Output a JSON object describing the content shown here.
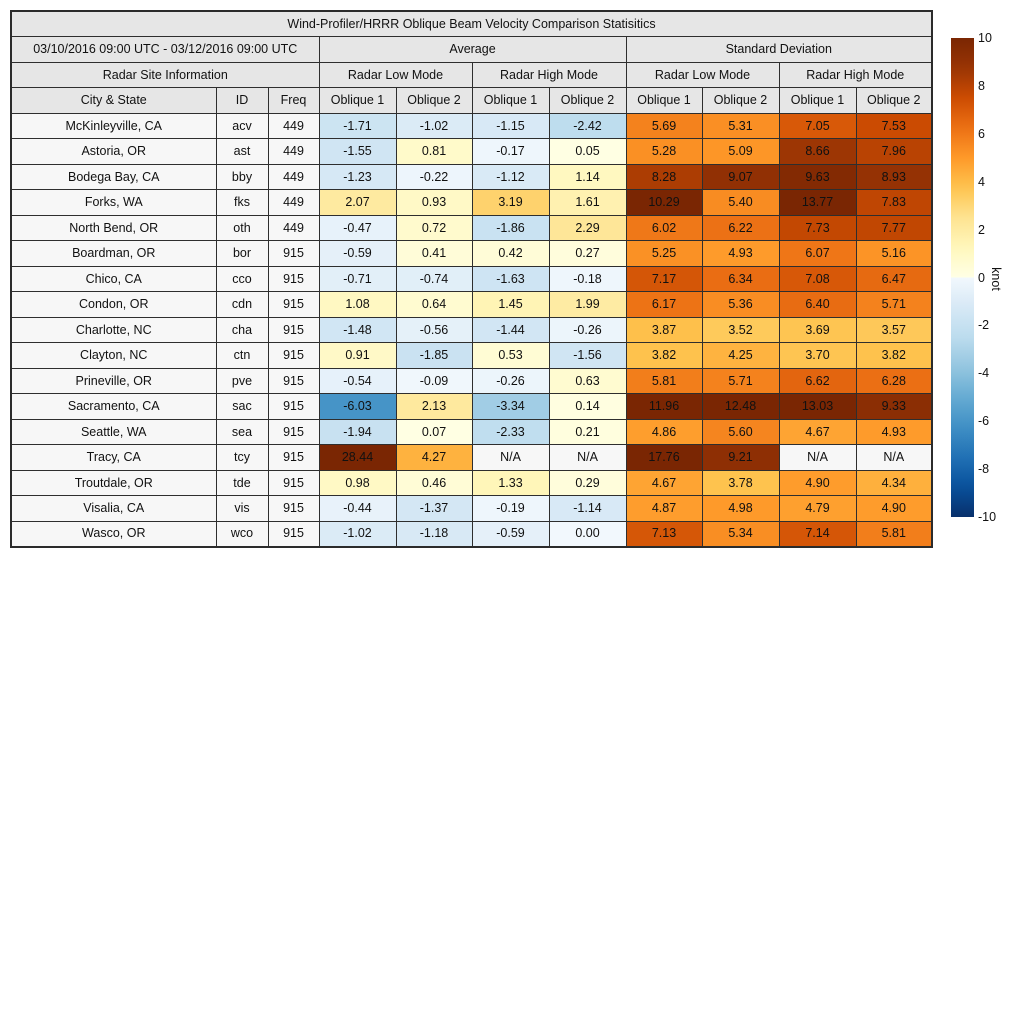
{
  "title": "Wind-Profiler/HRRR Oblique Beam Velocity Comparison Statisitics",
  "na_label": "N/A",
  "header": {
    "date_range": "03/10/2016 09:00 UTC - 03/12/2016 09:00 UTC",
    "group_average": "Average",
    "group_std": "Standard Deviation",
    "site_info": "Radar Site Information",
    "mode_labels": [
      "Radar Low Mode",
      "Radar High Mode",
      "Radar Low Mode",
      "Radar High Mode"
    ],
    "col_city": "City & State",
    "col_id": "ID",
    "col_freq": "Freq",
    "oblique_labels": [
      "Oblique 1",
      "Oblique 2",
      "Oblique 1",
      "Oblique 2",
      "Oblique 1",
      "Oblique 2",
      "Oblique 1",
      "Oblique 2"
    ]
  },
  "colors": {
    "header_bg": "#e6e6e6",
    "label_bg": "#f7f7f7",
    "na_bg": "#f7f7f7",
    "border": "#2e2e2e",
    "text": "#111111"
  },
  "colorbar": {
    "label": "knot",
    "vmin": -10,
    "vmax": 10,
    "ticks": [
      10,
      8,
      6,
      4,
      2,
      0,
      -2,
      -4,
      -6,
      -8,
      -10
    ],
    "positive_stops": [
      "#ffffe5",
      "#fff7bc",
      "#fee391",
      "#fec44f",
      "#fe9929",
      "#ec7014",
      "#cc4c02",
      "#993404",
      "#7a2603"
    ],
    "negative_stops": [
      "#f2f8fd",
      "#d6e8f5",
      "#bcdcee",
      "#94c6e0",
      "#66abd3",
      "#3f8fc5",
      "#2171b5",
      "#08519c",
      "#08306b"
    ]
  },
  "chart_data": {
    "type": "table",
    "title": "Wind-Profiler/HRRR Oblique Beam Velocity Comparison Statisitics",
    "value_unit": "knot",
    "value_columns": [
      "Average Radar Low Mode Oblique 1",
      "Average Radar Low Mode Oblique 2",
      "Average Radar High Mode Oblique 1",
      "Average Radar High Mode Oblique 2",
      "Standard Deviation Radar Low Mode Oblique 1",
      "Standard Deviation Radar Low Mode Oblique 2",
      "Standard Deviation Radar High Mode Oblique 1",
      "Standard Deviation Radar High Mode Oblique 2"
    ],
    "rows": [
      {
        "city": "McKinleyville, CA",
        "id": "acv",
        "freq": "449",
        "values": [
          -1.71,
          -1.02,
          -1.15,
          -2.42,
          5.69,
          5.31,
          7.05,
          7.53
        ]
      },
      {
        "city": "Astoria, OR",
        "id": "ast",
        "freq": "449",
        "values": [
          -1.55,
          0.81,
          -0.17,
          0.05,
          5.28,
          5.09,
          8.66,
          7.96
        ]
      },
      {
        "city": "Bodega Bay, CA",
        "id": "bby",
        "freq": "449",
        "values": [
          -1.23,
          -0.22,
          -1.12,
          1.14,
          8.28,
          9.07,
          9.63,
          8.93
        ]
      },
      {
        "city": "Forks, WA",
        "id": "fks",
        "freq": "449",
        "values": [
          2.07,
          0.93,
          3.19,
          1.61,
          10.29,
          5.4,
          13.77,
          7.83
        ]
      },
      {
        "city": "North Bend, OR",
        "id": "oth",
        "freq": "449",
        "values": [
          -0.47,
          0.72,
          -1.86,
          2.29,
          6.02,
          6.22,
          7.73,
          7.77
        ]
      },
      {
        "city": "Boardman, OR",
        "id": "bor",
        "freq": "915",
        "values": [
          -0.59,
          0.41,
          0.42,
          0.27,
          5.25,
          4.93,
          6.07,
          5.16
        ]
      },
      {
        "city": "Chico, CA",
        "id": "cco",
        "freq": "915",
        "values": [
          -0.71,
          -0.74,
          -1.63,
          -0.18,
          7.17,
          6.34,
          7.08,
          6.47
        ]
      },
      {
        "city": "Condon, OR",
        "id": "cdn",
        "freq": "915",
        "values": [
          1.08,
          0.64,
          1.45,
          1.99,
          6.17,
          5.36,
          6.4,
          5.71
        ]
      },
      {
        "city": "Charlotte, NC",
        "id": "cha",
        "freq": "915",
        "values": [
          -1.48,
          -0.56,
          -1.44,
          -0.26,
          3.87,
          3.52,
          3.69,
          3.57
        ]
      },
      {
        "city": "Clayton, NC",
        "id": "ctn",
        "freq": "915",
        "values": [
          0.91,
          -1.85,
          0.53,
          -1.56,
          3.82,
          4.25,
          3.7,
          3.82
        ]
      },
      {
        "city": "Prineville, OR",
        "id": "pve",
        "freq": "915",
        "values": [
          -0.54,
          -0.09,
          -0.26,
          0.63,
          5.81,
          5.71,
          6.62,
          6.28
        ]
      },
      {
        "city": "Sacramento, CA",
        "id": "sac",
        "freq": "915",
        "values": [
          -6.03,
          2.13,
          -3.34,
          0.14,
          11.96,
          12.48,
          13.03,
          9.33
        ]
      },
      {
        "city": "Seattle, WA",
        "id": "sea",
        "freq": "915",
        "values": [
          -1.94,
          0.07,
          -2.33,
          0.21,
          4.86,
          5.6,
          4.67,
          4.93
        ]
      },
      {
        "city": "Tracy, CA",
        "id": "tcy",
        "freq": "915",
        "values": [
          28.44,
          4.27,
          null,
          null,
          17.76,
          9.21,
          null,
          null
        ]
      },
      {
        "city": "Troutdale, OR",
        "id": "tde",
        "freq": "915",
        "values": [
          0.98,
          0.46,
          1.33,
          0.29,
          4.67,
          3.78,
          4.9,
          4.34
        ]
      },
      {
        "city": "Visalia, CA",
        "id": "vis",
        "freq": "915",
        "values": [
          -0.44,
          -1.37,
          -0.19,
          -1.14,
          4.87,
          4.98,
          4.79,
          4.9
        ]
      },
      {
        "city": "Wasco, OR",
        "id": "wco",
        "freq": "915",
        "values": [
          -1.02,
          -1.18,
          -0.59,
          0.0,
          7.13,
          5.34,
          7.14,
          5.81
        ]
      }
    ]
  }
}
